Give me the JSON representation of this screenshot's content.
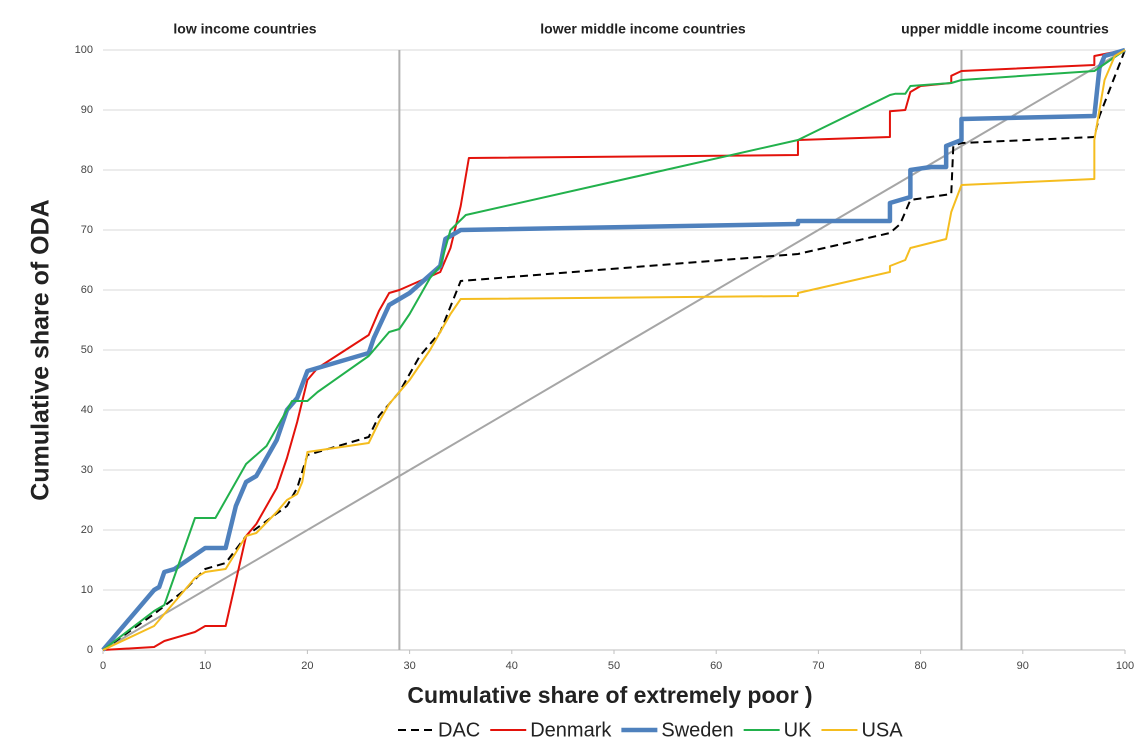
{
  "chart_data": {
    "type": "line",
    "x_label": "Cumulative share  of extremely poor )",
    "y_label": "Cumulative share of ODA",
    "annotations": [
      "low income countries",
      "lower middle  income countries",
      "upper  middle  income countries"
    ],
    "vlines": [
      29,
      84
    ],
    "xlim": [
      0,
      100
    ],
    "ylim": [
      0,
      100
    ],
    "xticks": [
      0,
      10,
      20,
      30,
      40,
      50,
      60,
      70,
      80,
      90,
      100
    ],
    "yticks": [
      0,
      10,
      20,
      30,
      40,
      50,
      60,
      70,
      80,
      90,
      100
    ],
    "grid": true,
    "series": [
      {
        "color": "#a6a6a6",
        "width": 2,
        "x": [
          0,
          100
        ],
        "values": [
          0,
          100
        ]
      },
      {
        "name": "DAC",
        "color": "#000000",
        "width": 2,
        "dashed": true,
        "x": [
          0,
          5,
          8,
          10,
          12,
          14,
          18,
          19,
          20,
          26,
          27,
          29,
          31,
          33,
          35,
          68,
          77,
          78,
          79,
          83,
          83.2,
          84,
          97,
          97.5,
          100
        ],
        "values": [
          0,
          6,
          10,
          13.5,
          14.5,
          19,
          24,
          27,
          32.5,
          35.5,
          39,
          43,
          49,
          53,
          61.5,
          66,
          69.5,
          71,
          75,
          76,
          84,
          84.5,
          85.5,
          89,
          100
        ]
      },
      {
        "name": "Denmark",
        "color": "#e3120b",
        "width": 2,
        "x": [
          0,
          5,
          6,
          9,
          10,
          12,
          14,
          15,
          17,
          18,
          19,
          20,
          21,
          26,
          27,
          28,
          29,
          33,
          34,
          35,
          35.8,
          68,
          68,
          77,
          77,
          78.5,
          79,
          80,
          83,
          83,
          84,
          97,
          97,
          100
        ],
        "values": [
          0,
          0.5,
          1.5,
          3,
          4,
          4,
          19,
          21,
          27,
          32,
          38,
          45,
          47,
          52.5,
          56.5,
          59.5,
          60,
          63,
          67,
          74,
          82,
          82.5,
          85,
          85.5,
          89.8,
          90,
          93,
          94,
          94.5,
          95.7,
          96.5,
          97.5,
          99,
          100
        ]
      },
      {
        "name": "Sweden",
        "color": "#4f81bd",
        "width": 4.5,
        "x": [
          0,
          5,
          5.5,
          6,
          7,
          10,
          12,
          13,
          14,
          15,
          17,
          18,
          19,
          20,
          26,
          26.5,
          28,
          30,
          33,
          33.5,
          35,
          68,
          68,
          77,
          77,
          79,
          79,
          81,
          82.5,
          82.5,
          84,
          84,
          97,
          97.5,
          98,
          100
        ],
        "values": [
          0,
          10,
          10.5,
          13,
          13.5,
          17,
          17,
          24,
          28,
          29,
          35,
          40,
          42,
          46.5,
          49.5,
          52,
          57.5,
          59.5,
          64,
          68.5,
          70,
          71,
          71.5,
          71.5,
          74.5,
          75.5,
          80,
          80.5,
          80.5,
          84,
          85,
          88.5,
          89,
          97,
          99,
          100
        ]
      },
      {
        "name": "UK",
        "color": "#22b14c",
        "width": 2,
        "x": [
          0,
          5,
          6,
          9,
          11,
          14,
          16,
          18,
          18.5,
          20,
          21,
          26,
          28,
          29,
          30,
          32,
          33,
          34,
          35.5,
          68,
          77,
          77.5,
          78.5,
          79,
          83,
          84,
          97,
          100
        ],
        "values": [
          0,
          6.5,
          7.5,
          22,
          22,
          31,
          34,
          40,
          41.5,
          41.5,
          43,
          49,
          53,
          53.5,
          56,
          62,
          64,
          70,
          72.5,
          85,
          92.5,
          92.7,
          92.7,
          94,
          94.5,
          95,
          96.5,
          100
        ]
      },
      {
        "name": "USA",
        "color": "#f5bd1f",
        "width": 2,
        "x": [
          0,
          5,
          6,
          9,
          10,
          12,
          14,
          15,
          17,
          18,
          19,
          19.5,
          20,
          26,
          27,
          28,
          30,
          32,
          34,
          35,
          68,
          68,
          77,
          77,
          78.5,
          79,
          82.5,
          83,
          84,
          97,
          97,
          98,
          99,
          100
        ],
        "values": [
          0,
          4,
          6,
          12,
          13,
          13.5,
          19,
          19.5,
          23,
          25,
          26,
          28,
          33,
          34.5,
          38,
          41,
          45,
          50,
          56,
          58.5,
          59,
          59.5,
          63,
          64,
          65,
          67,
          68.5,
          73,
          77.5,
          78.5,
          85,
          95,
          99,
          100
        ]
      }
    ]
  }
}
